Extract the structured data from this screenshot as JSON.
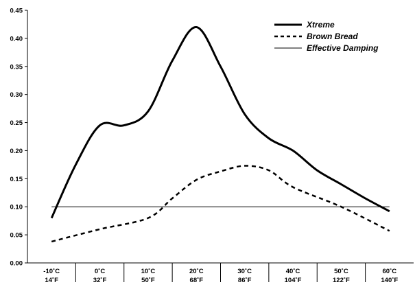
{
  "chart_data": {
    "type": "line",
    "title": "",
    "xlabel": "",
    "ylabel": "",
    "ylim": [
      0,
      0.45
    ],
    "yticks": [
      "0.00",
      "0.05",
      "0.10",
      "0.15",
      "0.20",
      "0.25",
      "0.30",
      "0.35",
      "0.40",
      "0.45"
    ],
    "categories": [
      {
        "c": "-10˚C",
        "f": "14˚F"
      },
      {
        "c": "0˚C",
        "f": "32˚F"
      },
      {
        "c": "10˚C",
        "f": "50˚F"
      },
      {
        "c": "20˚C",
        "f": "68˚F"
      },
      {
        "c": "30˚C",
        "f": "86˚F"
      },
      {
        "c": "40˚C",
        "f": "104˚F"
      },
      {
        "c": "50˚C",
        "f": "122˚F"
      },
      {
        "c": "60˚C",
        "f": "140˚F"
      }
    ],
    "grid": false,
    "legend_position": "top-right",
    "series": [
      {
        "name": "Xtreme",
        "style": "solid-thick",
        "points": [
          [
            -10,
            0.08
          ],
          [
            -5,
            0.175
          ],
          [
            0,
            0.245
          ],
          [
            5,
            0.245
          ],
          [
            10,
            0.27
          ],
          [
            15,
            0.36
          ],
          [
            20,
            0.42
          ],
          [
            25,
            0.35
          ],
          [
            30,
            0.265
          ],
          [
            35,
            0.222
          ],
          [
            40,
            0.2
          ],
          [
            45,
            0.165
          ],
          [
            50,
            0.14
          ],
          [
            55,
            0.115
          ],
          [
            60,
            0.092
          ]
        ]
      },
      {
        "name": "Brown Bread",
        "style": "dashed",
        "points": [
          [
            -10,
            0.038
          ],
          [
            0,
            0.06
          ],
          [
            10,
            0.08
          ],
          [
            15,
            0.115
          ],
          [
            20,
            0.148
          ],
          [
            25,
            0.163
          ],
          [
            30,
            0.173
          ],
          [
            35,
            0.165
          ],
          [
            40,
            0.135
          ],
          [
            50,
            0.1
          ],
          [
            60,
            0.057
          ]
        ]
      },
      {
        "name": "Effective Damping",
        "style": "thin",
        "points": [
          [
            -10,
            0.1
          ],
          [
            60,
            0.1
          ]
        ]
      }
    ]
  }
}
